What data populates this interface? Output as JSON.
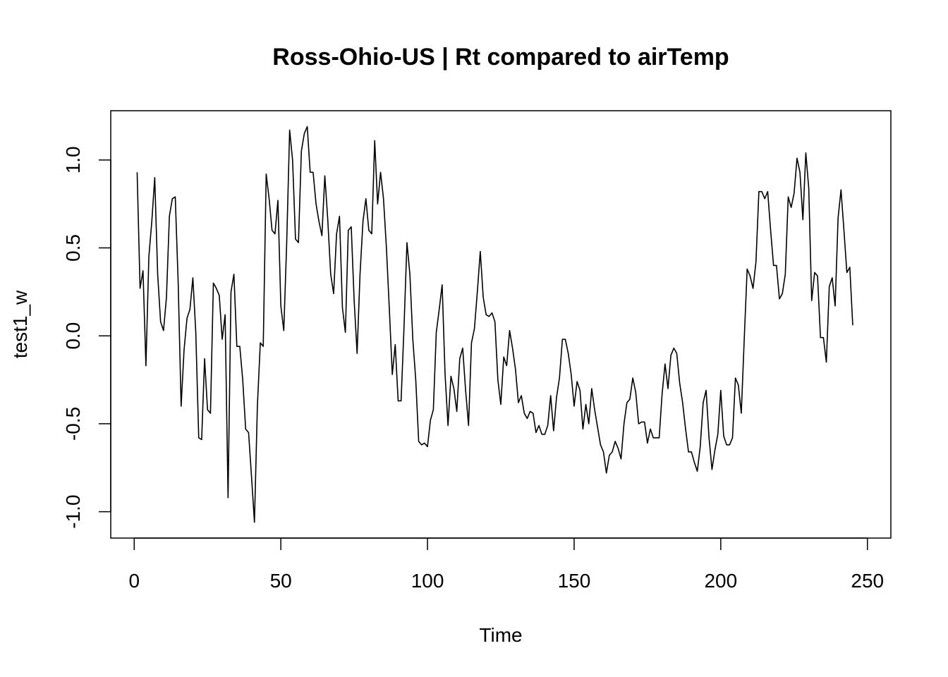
{
  "chart_data": {
    "type": "line",
    "title": "Ross-Ohio-US | Rt compared to airTemp",
    "xlabel": "Time",
    "ylabel": "test1_w",
    "xlim": [
      -8,
      258
    ],
    "ylim": [
      -1.15,
      1.28
    ],
    "x_ticks": [
      0,
      50,
      100,
      150,
      200,
      250
    ],
    "y_ticks": [
      -1.0,
      -0.5,
      0.0,
      0.5,
      1.0
    ],
    "x_tick_labels": [
      "0",
      "50",
      "100",
      "150",
      "200",
      "250"
    ],
    "y_tick_labels": [
      "-1.0",
      "-0.5",
      "0.0",
      "0.5",
      "1.0"
    ],
    "grid": false,
    "series": [
      {
        "color": "#000000",
        "x_start": 1,
        "x_step": 1,
        "values": [
          0.93,
          0.27,
          0.37,
          -0.17,
          0.45,
          0.65,
          0.9,
          0.35,
          0.08,
          0.03,
          0.22,
          0.68,
          0.78,
          0.79,
          0.3,
          -0.4,
          -0.08,
          0.1,
          0.15,
          0.33,
          0.02,
          -0.58,
          -0.59,
          -0.13,
          -0.42,
          -0.44,
          0.3,
          0.27,
          0.23,
          -0.02,
          0.12,
          -0.92,
          0.25,
          0.35,
          -0.06,
          -0.06,
          -0.25,
          -0.53,
          -0.55,
          -0.8,
          -1.06,
          -0.4,
          -0.04,
          -0.06,
          0.92,
          0.78,
          0.6,
          0.58,
          0.77,
          0.17,
          0.03,
          0.53,
          1.17,
          1.0,
          0.55,
          0.53,
          1.05,
          1.15,
          1.19,
          0.93,
          0.93,
          0.75,
          0.65,
          0.57,
          0.91,
          0.66,
          0.35,
          0.24,
          0.58,
          0.68,
          0.16,
          0.02,
          0.6,
          0.62,
          0.2,
          -0.1,
          0.35,
          0.65,
          0.78,
          0.6,
          0.58,
          1.11,
          0.75,
          0.93,
          0.78,
          0.5,
          0.15,
          -0.22,
          -0.05,
          -0.37,
          -0.37,
          0.05,
          0.53,
          0.35,
          -0.02,
          -0.25,
          -0.6,
          -0.62,
          -0.61,
          -0.63,
          -0.48,
          -0.42,
          0.02,
          0.15,
          0.29,
          -0.22,
          -0.51,
          -0.23,
          -0.3,
          -0.43,
          -0.13,
          -0.07,
          -0.31,
          -0.51,
          -0.04,
          0.04,
          0.25,
          0.48,
          0.22,
          0.12,
          0.11,
          0.13,
          0.08,
          -0.25,
          -0.39,
          -0.12,
          -0.17,
          0.03,
          -0.07,
          -0.19,
          -0.38,
          -0.34,
          -0.44,
          -0.47,
          -0.43,
          -0.44,
          -0.55,
          -0.51,
          -0.56,
          -0.56,
          -0.51,
          -0.34,
          -0.54,
          -0.35,
          -0.24,
          -0.02,
          -0.02,
          -0.1,
          -0.22,
          -0.4,
          -0.26,
          -0.31,
          -0.53,
          -0.39,
          -0.5,
          -0.3,
          -0.42,
          -0.52,
          -0.62,
          -0.66,
          -0.78,
          -0.68,
          -0.66,
          -0.6,
          -0.64,
          -0.7,
          -0.5,
          -0.38,
          -0.36,
          -0.24,
          -0.32,
          -0.5,
          -0.49,
          -0.49,
          -0.61,
          -0.53,
          -0.58,
          -0.58,
          -0.58,
          -0.33,
          -0.16,
          -0.3,
          -0.11,
          -0.07,
          -0.1,
          -0.27,
          -0.38,
          -0.53,
          -0.66,
          -0.66,
          -0.72,
          -0.77,
          -0.63,
          -0.38,
          -0.31,
          -0.58,
          -0.76,
          -0.65,
          -0.56,
          -0.31,
          -0.57,
          -0.62,
          -0.62,
          -0.58,
          -0.24,
          -0.28,
          -0.44,
          -0.02,
          0.38,
          0.34,
          0.27,
          0.42,
          0.82,
          0.82,
          0.78,
          0.82,
          0.6,
          0.4,
          0.4,
          0.21,
          0.24,
          0.35,
          0.79,
          0.73,
          0.81,
          1.01,
          0.93,
          0.66,
          1.04,
          0.84,
          0.2,
          0.36,
          0.34,
          -0.01,
          -0.01,
          -0.15,
          0.28,
          0.33,
          0.17,
          0.67,
          0.83,
          0.6,
          0.36,
          0.39,
          0.06
        ]
      }
    ]
  }
}
